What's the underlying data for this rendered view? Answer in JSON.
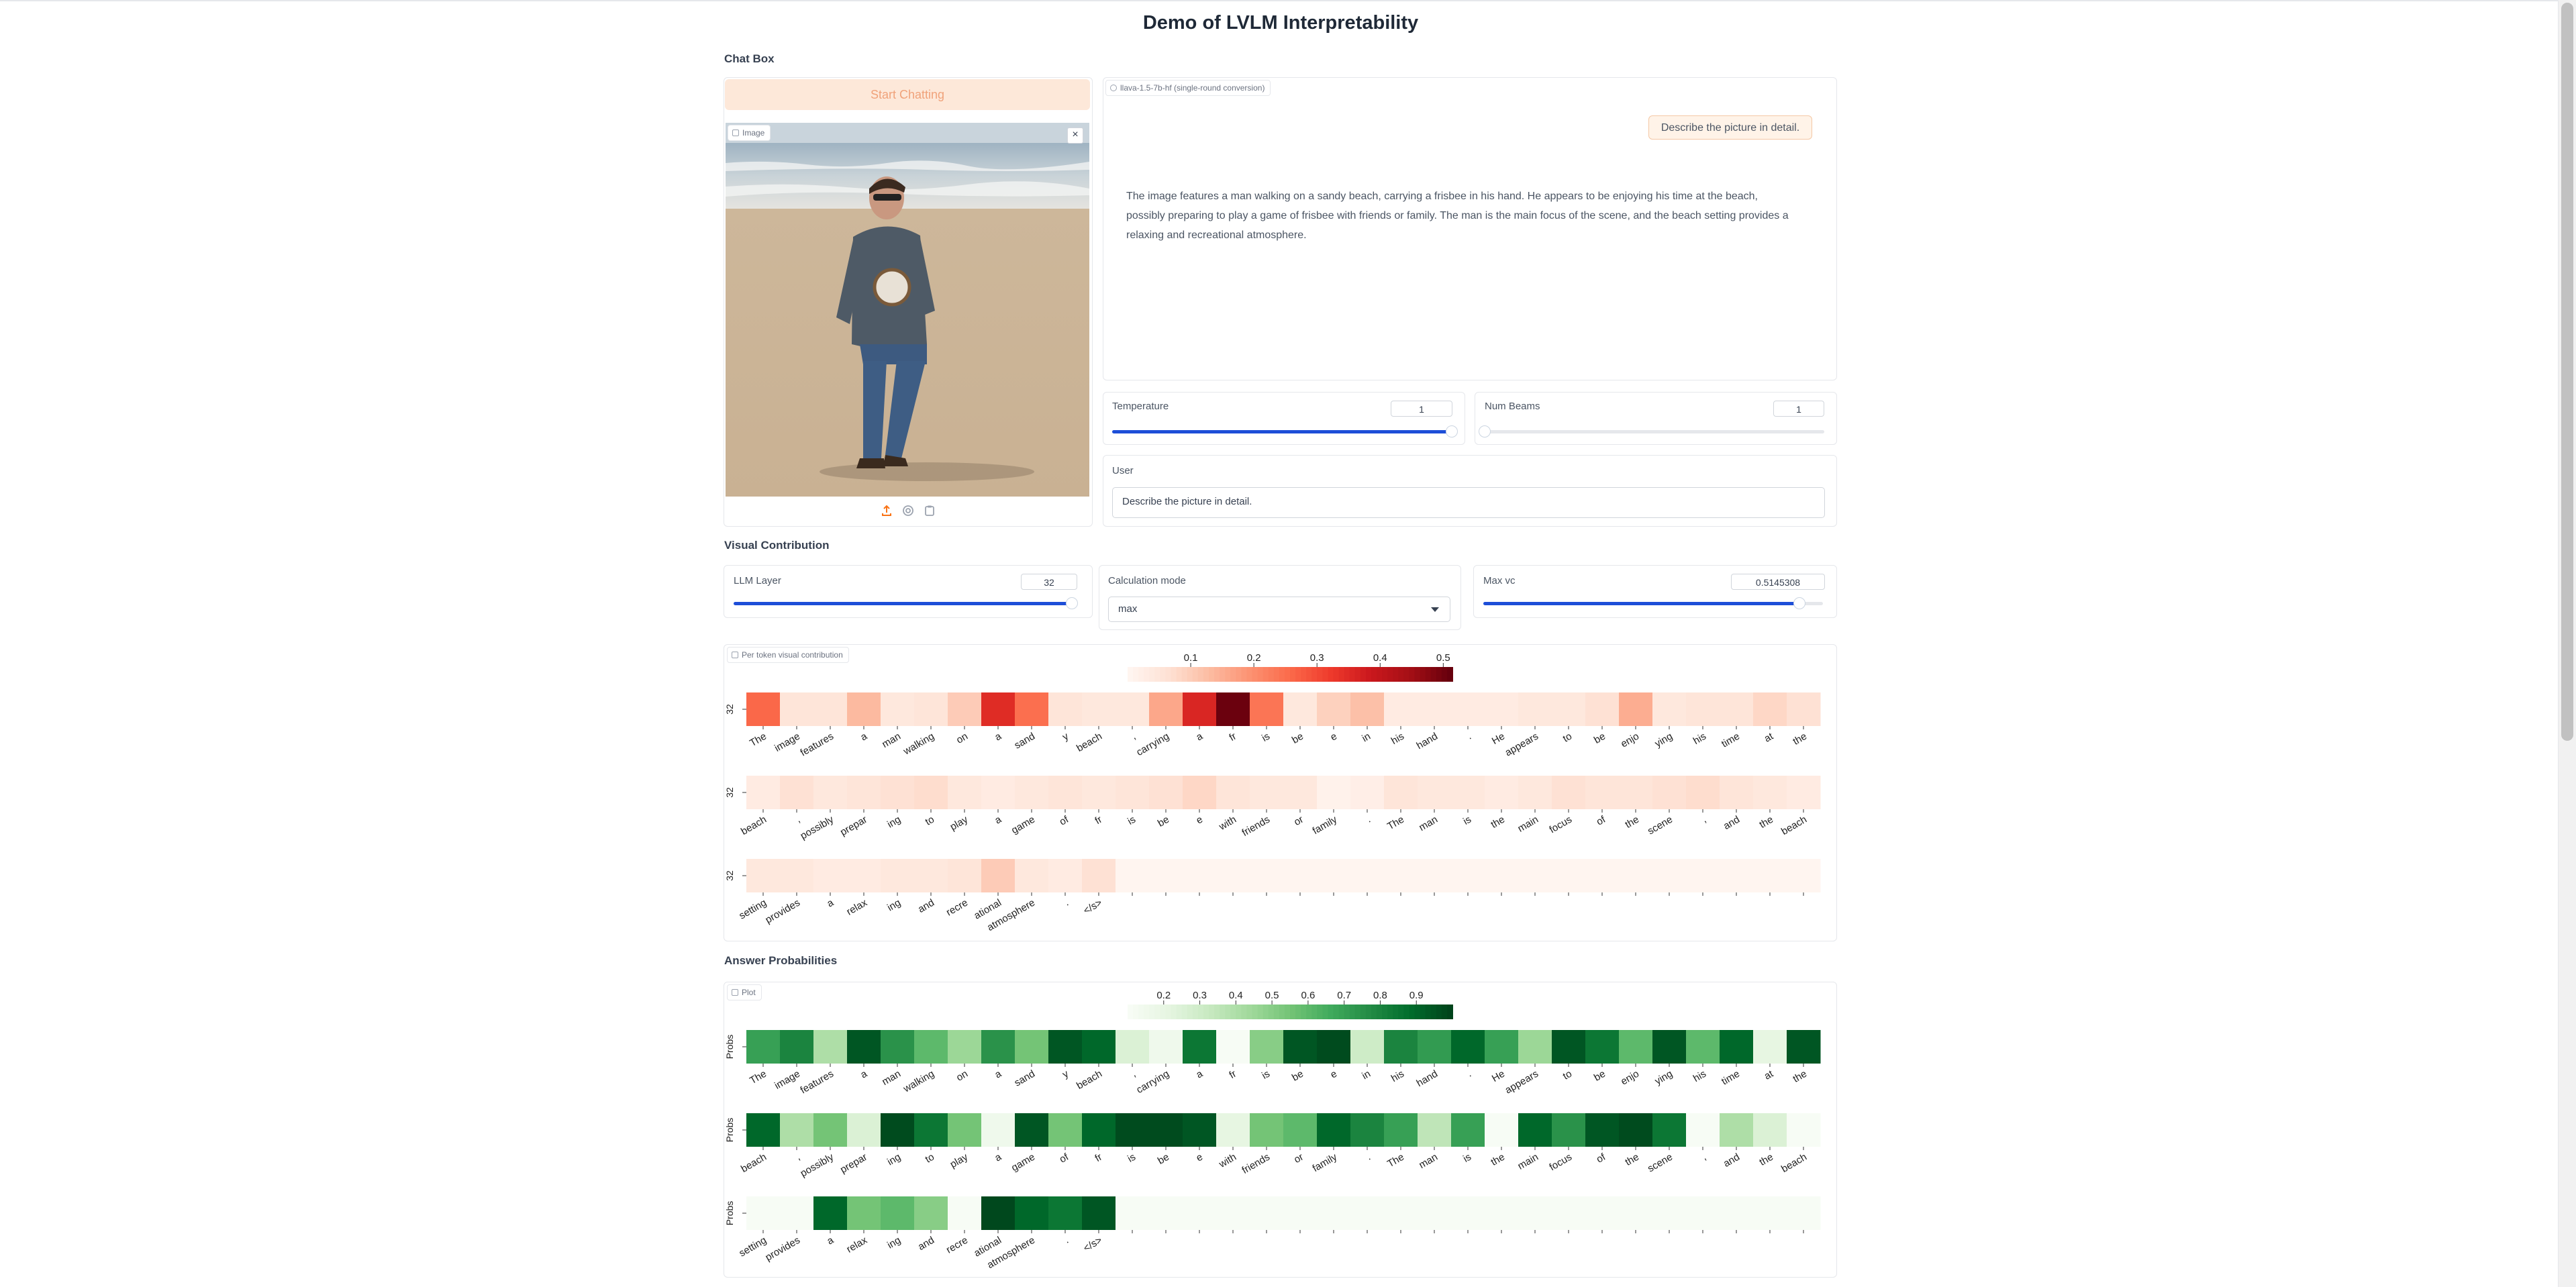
{
  "app_title": "Demo of LVLM Interpretability",
  "chat_box": {
    "section_label": "Chat Box",
    "start_button": "Start Chatting",
    "image_label": "Image",
    "chatbot_label": "llava-1.5-7b-hf (single-round conversion)",
    "user_message": "Describe the picture in detail.",
    "assistant_message": "The image features a man walking on a sandy beach, carrying a frisbee in his hand. He appears to be enjoying his time at the beach, possibly preparing to play a game of frisbee with friends or family. The man is the main focus of the scene, and the beach setting provides a relaxing and recreational atmosphere.",
    "temperature": {
      "label": "Temperature",
      "value": "1",
      "fraction": 1.0
    },
    "num_beams": {
      "label": "Num Beams",
      "value": "1",
      "fraction": 0.0
    },
    "user_input": {
      "label": "User",
      "value": "Describe the picture in detail."
    }
  },
  "visual_contribution": {
    "section_label": "Visual Contribution",
    "llm_layer": {
      "label": "LLM Layer",
      "value": "32",
      "fraction": 1.0
    },
    "calculation_mode": {
      "label": "Calculation mode",
      "value": "max"
    },
    "max_vc": {
      "label": "Max vc",
      "value": "0.5145308",
      "fraction": 0.93
    },
    "plot_label": "Per token visual contribution"
  },
  "answer_probabilities": {
    "section_label": "Answer Probabilities",
    "plot_label": "Plot"
  },
  "icons": {
    "upload": "upload-icon",
    "webcam": "webcam-icon",
    "clipboard": "clipboard-icon",
    "close": "close-icon",
    "chat": "chat-icon",
    "image": "image-icon",
    "plot": "plot-icon",
    "dropdown": "chevron-down-icon"
  },
  "chart_data": [
    {
      "type": "heatmap",
      "title": "",
      "row_labels": [
        "32",
        "32",
        "32"
      ],
      "colorbar": {
        "colormap": "Reds",
        "range": [
          0,
          0.5145308
        ],
        "ticks": [
          0.1,
          0.2,
          0.3,
          0.4,
          0.5
        ]
      },
      "rows": [
        {
          "tokens": [
            "The",
            "image",
            "features",
            "a",
            "man",
            "walking",
            "on",
            "a",
            "sand",
            "y",
            "beach",
            ",",
            "carrying",
            "a",
            "fr",
            "is",
            "be",
            "e",
            "in",
            "his",
            "hand",
            ".",
            "He",
            "appears",
            "to",
            "be",
            "enjo",
            "ying",
            "his",
            "time",
            "at",
            "the"
          ],
          "values": [
            0.26,
            0.05,
            0.05,
            0.13,
            0.04,
            0.05,
            0.1,
            0.35,
            0.25,
            0.05,
            0.04,
            0.04,
            0.16,
            0.36,
            0.51,
            0.24,
            0.04,
            0.09,
            0.12,
            0.03,
            0.03,
            0.03,
            0.03,
            0.04,
            0.04,
            0.06,
            0.15,
            0.04,
            0.05,
            0.05,
            0.08,
            0.06
          ]
        },
        {
          "tokens": [
            "beach",
            ",",
            "possibly",
            "prepar",
            "ing",
            "to",
            "play",
            "a",
            "game",
            "of",
            "fr",
            "is",
            "be",
            "e",
            "with",
            "friends",
            "or",
            "family",
            ".",
            "The",
            "man",
            "is",
            "the",
            "main",
            "focus",
            "of",
            "the",
            "scene",
            ",",
            "and",
            "the",
            "beach"
          ],
          "values": [
            0.03,
            0.06,
            0.04,
            0.05,
            0.06,
            0.07,
            0.04,
            0.03,
            0.04,
            0.05,
            0.04,
            0.05,
            0.06,
            0.08,
            0.05,
            0.04,
            0.04,
            0.01,
            0.02,
            0.05,
            0.04,
            0.04,
            0.03,
            0.04,
            0.06,
            0.05,
            0.05,
            0.06,
            0.07,
            0.05,
            0.04,
            0.03
          ]
        },
        {
          "tokens": [
            "setting",
            "provides",
            "a",
            "relax",
            "ing",
            "and",
            "recre",
            "ational",
            "atmosphere",
            ".",
            "</s>"
          ],
          "values": [
            0.04,
            0.04,
            0.03,
            0.03,
            0.04,
            0.04,
            0.05,
            0.1,
            0.04,
            0.03,
            0.06
          ]
        }
      ]
    },
    {
      "type": "heatmap",
      "title": "",
      "row_labels": [
        "Probs",
        "Probs",
        "Probs"
      ],
      "colorbar": {
        "colormap": "Greens",
        "range": [
          0.1,
          1.0
        ],
        "ticks": [
          0.2,
          0.3,
          0.4,
          0.5,
          0.6,
          0.7,
          0.8,
          0.9
        ]
      },
      "rows": [
        {
          "tokens": [
            "The",
            "image",
            "features",
            "a",
            "man",
            "walking",
            "on",
            "a",
            "sand",
            "y",
            "beach",
            ",",
            "carrying",
            "a",
            "fr",
            "is",
            "be",
            "e",
            "in",
            "his",
            "hand",
            ".",
            "He",
            "appears",
            "to",
            "be",
            "enjo",
            "ying",
            "his",
            "time",
            "at",
            "the"
          ],
          "values": [
            0.7,
            0.8,
            0.4,
            0.95,
            0.75,
            0.6,
            0.45,
            0.75,
            0.55,
            0.95,
            0.9,
            0.25,
            0.15,
            0.85,
            0.05,
            0.5,
            0.95,
            0.98,
            0.3,
            0.8,
            0.72,
            0.9,
            0.7,
            0.45,
            0.95,
            0.85,
            0.6,
            0.95,
            0.6,
            0.9,
            0.2,
            0.95
          ]
        },
        {
          "tokens": [
            "beach",
            ",",
            "possibly",
            "prepar",
            "ing",
            "to",
            "play",
            "a",
            "game",
            "of",
            "fr",
            "is",
            "be",
            "e",
            "with",
            "friends",
            "or",
            "family",
            ".",
            "The",
            "man",
            "is",
            "the",
            "main",
            "focus",
            "of",
            "the",
            "scene",
            ",",
            "and",
            "the",
            "beach"
          ],
          "values": [
            0.9,
            0.4,
            0.55,
            0.25,
            0.98,
            0.85,
            0.55,
            0.15,
            0.95,
            0.55,
            0.9,
            0.98,
            0.98,
            0.95,
            0.2,
            0.55,
            0.6,
            0.9,
            0.8,
            0.7,
            0.35,
            0.7,
            0.1,
            0.9,
            0.75,
            0.95,
            0.98,
            0.85,
            0.05,
            0.4,
            0.25,
            0.05
          ]
        },
        {
          "tokens": [
            "setting",
            "provides",
            "a",
            "relax",
            "ing",
            "and",
            "recre",
            "ational",
            "atmosphere",
            ".",
            "</s>"
          ],
          "values": [
            0.1,
            0.05,
            0.9,
            0.55,
            0.6,
            0.5,
            0.05,
            0.99,
            0.9,
            0.85,
            0.95
          ]
        }
      ]
    }
  ]
}
